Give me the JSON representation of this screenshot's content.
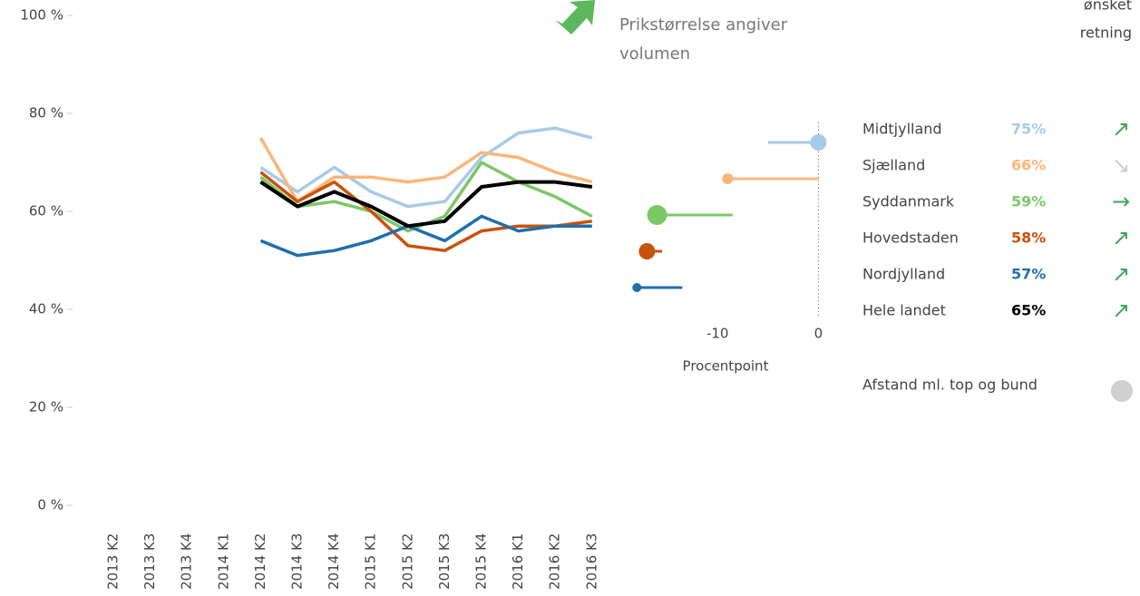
{
  "chart_data": [
    {
      "type": "line",
      "categories": [
        "2013 K2",
        "2013 K3",
        "2013 K4",
        "2014 K1",
        "2014 K2",
        "2014 K3",
        "2014 K4",
        "2015 K1",
        "2015 K2",
        "2015 K3",
        "2015 K4",
        "2016 K1",
        "2016 K2",
        "2016 K3"
      ],
      "ylim": [
        0,
        100
      ],
      "yticks": [
        {
          "value": 0,
          "label": "0 %"
        },
        {
          "value": 20,
          "label": "20 %"
        },
        {
          "value": 40,
          "label": "40 %"
        },
        {
          "value": 60,
          "label": "60 %"
        },
        {
          "value": 80,
          "label": "80 %"
        },
        {
          "value": 100,
          "label": "100 %"
        }
      ],
      "series": [
        {
          "name": "Midtjylland",
          "color": "#a6cbe8",
          "values": [
            null,
            null,
            null,
            null,
            69,
            64,
            69,
            64,
            61,
            62,
            71,
            76,
            77,
            75
          ]
        },
        {
          "name": "Sjælland",
          "color": "#fdb57a",
          "values": [
            null,
            null,
            null,
            null,
            75,
            62,
            67,
            67,
            66,
            67,
            72,
            71,
            68,
            66
          ]
        },
        {
          "name": "Syddanmark",
          "color": "#7cc866",
          "values": [
            null,
            null,
            null,
            null,
            67,
            61,
            62,
            60,
            56,
            59,
            70,
            66,
            63,
            59
          ]
        },
        {
          "name": "Hovedstaden",
          "color": "#c9520a",
          "values": [
            null,
            null,
            null,
            null,
            68,
            62,
            66,
            60,
            53,
            52,
            56,
            57,
            57,
            58
          ]
        },
        {
          "name": "Nordjylland",
          "color": "#1f6fae",
          "values": [
            null,
            null,
            null,
            null,
            54,
            51,
            52,
            54,
            57,
            54,
            59,
            56,
            57,
            57
          ]
        },
        {
          "name": "Hele landet",
          "color": "#000000",
          "values": [
            null,
            null,
            null,
            null,
            66,
            61,
            64,
            61,
            57,
            58,
            65,
            66,
            66,
            65
          ]
        }
      ]
    },
    {
      "type": "dumbbell",
      "xlabel": "Procentpoint",
      "xlim": [
        -20,
        0.5
      ],
      "xticks": [
        -10,
        0
      ],
      "values": [
        0,
        -9,
        -16,
        -17,
        -18
      ],
      "start": [
        -5,
        0,
        -8.5,
        -15.5,
        -13.5
      ],
      "sizes": [
        9,
        6,
        11,
        9,
        5
      ],
      "colors": [
        "#a6cbe8",
        "#fdb57a",
        "#7cc866",
        "#c9520a",
        "#1f6fae"
      ]
    }
  ],
  "legend": {
    "title": [
      "ønsket",
      "retning"
    ],
    "values": [
      75,
      66,
      59,
      58,
      57,
      65
    ],
    "value_labels": [
      "75%",
      "66%",
      "59%",
      "58%",
      "57%",
      "65%"
    ],
    "trend": [
      "↗",
      "↘",
      "→",
      "↗",
      "↗",
      "↗"
    ],
    "trend_colors": [
      "#3aa65a",
      "#cccccc",
      "#3aa65a",
      "#3aa65a",
      "#3aa65a",
      "#3aa65a"
    ]
  },
  "notes": {
    "dot_size": [
      "Prikstørrelse angiver",
      "volumen"
    ],
    "spread": "Afstand ml. top og bund"
  }
}
